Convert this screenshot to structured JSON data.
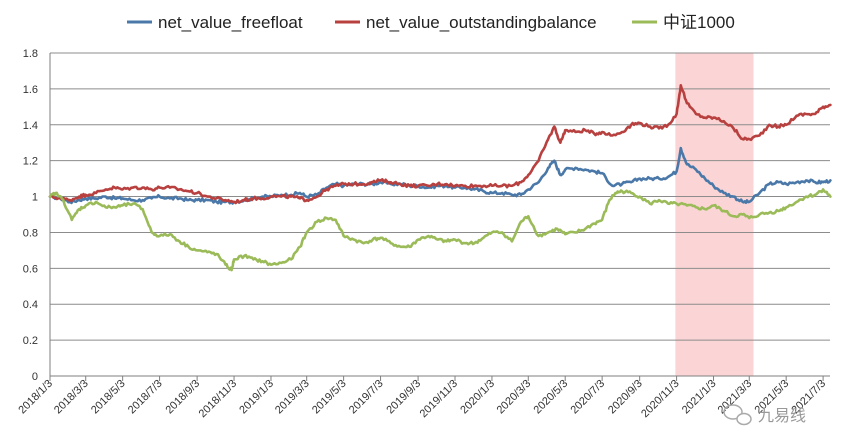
{
  "chart_data": {
    "type": "line",
    "xlabel": "",
    "ylabel": "",
    "ylim": [
      0,
      1.8
    ],
    "y_ticks": [
      "0",
      "0.2",
      "0.4",
      "0.6",
      "0.8",
      "1",
      "1.2",
      "1.4",
      "1.6",
      "1.8"
    ],
    "grid": "horizontal",
    "legend_position": "top",
    "x_tick_labels": [
      "2018/1/3",
      "2018/3/3",
      "2018/5/3",
      "2018/7/3",
      "2018/9/3",
      "2018/11/3",
      "2019/1/3",
      "2019/3/3",
      "2019/5/3",
      "2019/7/3",
      "2019/9/3",
      "2019/11/3",
      "2020/1/3",
      "2020/3/3",
      "2020/5/3",
      "2020/7/3",
      "2020/9/3",
      "2020/11/3",
      "2021/1/3",
      "2021/3/3",
      "2021/5/3",
      "2021/7/3"
    ],
    "highlight_region": {
      "start": "2020/11/1",
      "end": "2021/3/10",
      "color": "#fbd5d5"
    },
    "series": [
      {
        "name": "net_value_freefloat",
        "color": "#4a78a8",
        "points": [
          [
            "2018/1/3",
            1.0
          ],
          [
            "2018/1/20",
            0.99
          ],
          [
            "2018/2/5",
            0.97
          ],
          [
            "2018/2/20",
            0.98
          ],
          [
            "2018/3/3",
            0.99
          ],
          [
            "2018/3/20",
            0.99
          ],
          [
            "2018/4/5",
            1.0
          ],
          [
            "2018/4/20",
            0.99
          ],
          [
            "2018/5/3",
            0.99
          ],
          [
            "2018/5/20",
            0.98
          ],
          [
            "2018/6/5",
            0.98
          ],
          [
            "2018/6/20",
            0.99
          ],
          [
            "2018/7/3",
            1.0
          ],
          [
            "2018/7/20",
            0.99
          ],
          [
            "2018/8/5",
            0.99
          ],
          [
            "2018/8/20",
            0.98
          ],
          [
            "2018/9/3",
            0.98
          ],
          [
            "2018/9/20",
            0.98
          ],
          [
            "2018/10/5",
            0.97
          ],
          [
            "2018/10/20",
            0.97
          ],
          [
            "2018/11/3",
            0.97
          ],
          [
            "2018/11/20",
            0.98
          ],
          [
            "2018/12/5",
            0.99
          ],
          [
            "2018/12/20",
            1.0
          ],
          [
            "2019/1/3",
            1.0
          ],
          [
            "2019/1/20",
            1.01
          ],
          [
            "2019/2/5",
            1.01
          ],
          [
            "2019/2/20",
            1.02
          ],
          [
            "2019/3/3",
            1.0
          ],
          [
            "2019/3/20",
            1.01
          ],
          [
            "2019/4/5",
            1.05
          ],
          [
            "2019/4/20",
            1.07
          ],
          [
            "2019/5/3",
            1.06
          ],
          [
            "2019/5/20",
            1.07
          ],
          [
            "2019/6/5",
            1.07
          ],
          [
            "2019/6/20",
            1.07
          ],
          [
            "2019/7/3",
            1.08
          ],
          [
            "2019/7/20",
            1.07
          ],
          [
            "2019/8/5",
            1.07
          ],
          [
            "2019/8/20",
            1.06
          ],
          [
            "2019/9/3",
            1.06
          ],
          [
            "2019/9/20",
            1.05
          ],
          [
            "2019/10/5",
            1.06
          ],
          [
            "2019/10/20",
            1.06
          ],
          [
            "2019/11/3",
            1.05
          ],
          [
            "2019/11/20",
            1.05
          ],
          [
            "2019/12/5",
            1.04
          ],
          [
            "2019/12/20",
            1.03
          ],
          [
            "2020/1/3",
            1.02
          ],
          [
            "2020/1/20",
            1.02
          ],
          [
            "2020/2/5",
            1.01
          ],
          [
            "2020/2/20",
            1.01
          ],
          [
            "2020/3/3",
            1.04
          ],
          [
            "2020/3/20",
            1.08
          ],
          [
            "2020/4/5",
            1.16
          ],
          [
            "2020/4/15",
            1.2
          ],
          [
            "2020/4/25",
            1.12
          ],
          [
            "2020/5/3",
            1.15
          ],
          [
            "2020/5/20",
            1.16
          ],
          [
            "2020/6/5",
            1.15
          ],
          [
            "2020/6/20",
            1.14
          ],
          [
            "2020/7/3",
            1.13
          ],
          [
            "2020/7/20",
            1.06
          ],
          [
            "2020/8/5",
            1.07
          ],
          [
            "2020/8/20",
            1.08
          ],
          [
            "2020/9/3",
            1.1
          ],
          [
            "2020/9/20",
            1.1
          ],
          [
            "2020/10/5",
            1.1
          ],
          [
            "2020/10/20",
            1.11
          ],
          [
            "2020/11/3",
            1.14
          ],
          [
            "2020/11/10",
            1.27
          ],
          [
            "2020/11/20",
            1.18
          ],
          [
            "2020/12/5",
            1.15
          ],
          [
            "2020/12/20",
            1.1
          ],
          [
            "2021/1/3",
            1.06
          ],
          [
            "2021/1/20",
            1.02
          ],
          [
            "2021/2/5",
            1.0
          ],
          [
            "2021/2/20",
            0.97
          ],
          [
            "2021/3/3",
            0.97
          ],
          [
            "2021/3/20",
            1.02
          ],
          [
            "2021/4/5",
            1.07
          ],
          [
            "2021/4/20",
            1.08
          ],
          [
            "2021/5/3",
            1.07
          ],
          [
            "2021/5/20",
            1.08
          ],
          [
            "2021/6/5",
            1.09
          ],
          [
            "2021/6/20",
            1.08
          ],
          [
            "2021/7/3",
            1.08
          ],
          [
            "2021/7/15",
            1.09
          ]
        ]
      },
      {
        "name": "net_value_outstandingbalance",
        "color": "#b8403f",
        "points": [
          [
            "2018/1/3",
            1.0
          ],
          [
            "2018/1/20",
            0.99
          ],
          [
            "2018/2/5",
            0.98
          ],
          [
            "2018/2/20",
            1.0
          ],
          [
            "2018/3/3",
            1.01
          ],
          [
            "2018/3/20",
            1.02
          ],
          [
            "2018/4/5",
            1.04
          ],
          [
            "2018/4/20",
            1.05
          ],
          [
            "2018/5/3",
            1.04
          ],
          [
            "2018/5/20",
            1.05
          ],
          [
            "2018/6/5",
            1.05
          ],
          [
            "2018/6/20",
            1.04
          ],
          [
            "2018/7/3",
            1.05
          ],
          [
            "2018/7/20",
            1.05
          ],
          [
            "2018/8/5",
            1.04
          ],
          [
            "2018/8/20",
            1.03
          ],
          [
            "2018/9/3",
            1.02
          ],
          [
            "2018/9/20",
            1.0
          ],
          [
            "2018/10/5",
            0.99
          ],
          [
            "2018/10/20",
            0.98
          ],
          [
            "2018/11/3",
            0.97
          ],
          [
            "2018/11/20",
            0.98
          ],
          [
            "2018/12/5",
            0.99
          ],
          [
            "2018/12/20",
            0.99
          ],
          [
            "2019/1/3",
            1.0
          ],
          [
            "2019/1/20",
            1.0
          ],
          [
            "2019/2/5",
            1.0
          ],
          [
            "2019/2/20",
            0.99
          ],
          [
            "2019/3/3",
            0.98
          ],
          [
            "2019/3/20",
            1.0
          ],
          [
            "2019/4/5",
            1.04
          ],
          [
            "2019/4/20",
            1.06
          ],
          [
            "2019/5/3",
            1.07
          ],
          [
            "2019/5/20",
            1.07
          ],
          [
            "2019/6/5",
            1.07
          ],
          [
            "2019/6/20",
            1.08
          ],
          [
            "2019/7/3",
            1.09
          ],
          [
            "2019/7/20",
            1.08
          ],
          [
            "2019/8/5",
            1.07
          ],
          [
            "2019/8/20",
            1.06
          ],
          [
            "2019/9/3",
            1.06
          ],
          [
            "2019/9/20",
            1.06
          ],
          [
            "2019/10/5",
            1.07
          ],
          [
            "2019/10/20",
            1.07
          ],
          [
            "2019/11/3",
            1.06
          ],
          [
            "2019/11/20",
            1.06
          ],
          [
            "2019/12/5",
            1.06
          ],
          [
            "2019/12/20",
            1.06
          ],
          [
            "2020/1/3",
            1.06
          ],
          [
            "2020/1/20",
            1.06
          ],
          [
            "2020/2/5",
            1.06
          ],
          [
            "2020/2/20",
            1.08
          ],
          [
            "2020/3/3",
            1.12
          ],
          [
            "2020/3/20",
            1.2
          ],
          [
            "2020/4/5",
            1.32
          ],
          [
            "2020/4/15",
            1.39
          ],
          [
            "2020/4/25",
            1.3
          ],
          [
            "2020/5/3",
            1.37
          ],
          [
            "2020/5/20",
            1.36
          ],
          [
            "2020/6/5",
            1.37
          ],
          [
            "2020/6/20",
            1.35
          ],
          [
            "2020/7/3",
            1.36
          ],
          [
            "2020/7/20",
            1.34
          ],
          [
            "2020/8/5",
            1.36
          ],
          [
            "2020/8/20",
            1.4
          ],
          [
            "2020/9/3",
            1.41
          ],
          [
            "2020/9/20",
            1.39
          ],
          [
            "2020/10/5",
            1.38
          ],
          [
            "2020/10/20",
            1.4
          ],
          [
            "2020/11/3",
            1.46
          ],
          [
            "2020/11/10",
            1.62
          ],
          [
            "2020/11/20",
            1.52
          ],
          [
            "2020/12/5",
            1.46
          ],
          [
            "2020/12/20",
            1.44
          ],
          [
            "2021/1/3",
            1.44
          ],
          [
            "2021/1/20",
            1.42
          ],
          [
            "2021/2/5",
            1.38
          ],
          [
            "2021/2/20",
            1.32
          ],
          [
            "2021/3/3",
            1.32
          ],
          [
            "2021/3/20",
            1.34
          ],
          [
            "2021/4/5",
            1.4
          ],
          [
            "2021/4/20",
            1.39
          ],
          [
            "2021/5/3",
            1.4
          ],
          [
            "2021/5/20",
            1.45
          ],
          [
            "2021/6/5",
            1.46
          ],
          [
            "2021/6/20",
            1.46
          ],
          [
            "2021/7/3",
            1.5
          ],
          [
            "2021/7/15",
            1.51
          ]
        ]
      },
      {
        "name": "中证1000",
        "color": "#9bbb59",
        "points": [
          [
            "2018/1/3",
            1.0
          ],
          [
            "2018/1/12",
            1.02
          ],
          [
            "2018/1/25",
            0.98
          ],
          [
            "2018/2/8",
            0.87
          ],
          [
            "2018/2/20",
            0.93
          ],
          [
            "2018/3/3",
            0.95
          ],
          [
            "2018/3/20",
            0.97
          ],
          [
            "2018/4/5",
            0.94
          ],
          [
            "2018/4/20",
            0.94
          ],
          [
            "2018/5/3",
            0.95
          ],
          [
            "2018/5/20",
            0.96
          ],
          [
            "2018/6/5",
            0.93
          ],
          [
            "2018/6/20",
            0.8
          ],
          [
            "2018/7/3",
            0.78
          ],
          [
            "2018/7/20",
            0.79
          ],
          [
            "2018/8/5",
            0.75
          ],
          [
            "2018/8/20",
            0.72
          ],
          [
            "2018/9/3",
            0.7
          ],
          [
            "2018/9/20",
            0.69
          ],
          [
            "2018/10/5",
            0.68
          ],
          [
            "2018/10/20",
            0.62
          ],
          [
            "2018/10/30",
            0.59
          ],
          [
            "2018/11/3",
            0.65
          ],
          [
            "2018/11/20",
            0.67
          ],
          [
            "2018/12/5",
            0.65
          ],
          [
            "2018/12/20",
            0.64
          ],
          [
            "2019/1/3",
            0.62
          ],
          [
            "2019/1/20",
            0.63
          ],
          [
            "2019/2/5",
            0.65
          ],
          [
            "2019/2/20",
            0.72
          ],
          [
            "2019/3/3",
            0.8
          ],
          [
            "2019/3/20",
            0.86
          ],
          [
            "2019/4/5",
            0.88
          ],
          [
            "2019/4/20",
            0.87
          ],
          [
            "2019/5/3",
            0.78
          ],
          [
            "2019/5/20",
            0.76
          ],
          [
            "2019/6/5",
            0.74
          ],
          [
            "2019/6/20",
            0.76
          ],
          [
            "2019/7/3",
            0.77
          ],
          [
            "2019/7/20",
            0.74
          ],
          [
            "2019/8/5",
            0.72
          ],
          [
            "2019/8/20",
            0.72
          ],
          [
            "2019/9/3",
            0.76
          ],
          [
            "2019/9/20",
            0.78
          ],
          [
            "2019/10/5",
            0.76
          ],
          [
            "2019/10/20",
            0.75
          ],
          [
            "2019/11/3",
            0.76
          ],
          [
            "2019/11/20",
            0.74
          ],
          [
            "2019/12/5",
            0.74
          ],
          [
            "2019/12/20",
            0.77
          ],
          [
            "2020/1/3",
            0.8
          ],
          [
            "2020/1/20",
            0.8
          ],
          [
            "2020/2/5",
            0.75
          ],
          [
            "2020/2/20",
            0.86
          ],
          [
            "2020/3/3",
            0.89
          ],
          [
            "2020/3/20",
            0.78
          ],
          [
            "2020/4/5",
            0.8
          ],
          [
            "2020/4/20",
            0.82
          ],
          [
            "2020/5/3",
            0.79
          ],
          [
            "2020/5/20",
            0.8
          ],
          [
            "2020/6/5",
            0.82
          ],
          [
            "2020/6/20",
            0.85
          ],
          [
            "2020/7/3",
            0.87
          ],
          [
            "2020/7/15",
            0.98
          ],
          [
            "2020/7/25",
            1.02
          ],
          [
            "2020/8/5",
            1.03
          ],
          [
            "2020/8/20",
            1.02
          ],
          [
            "2020/9/3",
            1.0
          ],
          [
            "2020/9/20",
            0.96
          ],
          [
            "2020/10/5",
            0.98
          ],
          [
            "2020/10/20",
            0.96
          ],
          [
            "2020/11/3",
            0.96
          ],
          [
            "2020/11/20",
            0.95
          ],
          [
            "2020/12/5",
            0.94
          ],
          [
            "2020/12/20",
            0.93
          ],
          [
            "2021/1/3",
            0.95
          ],
          [
            "2021/1/20",
            0.92
          ],
          [
            "2021/2/5",
            0.89
          ],
          [
            "2021/2/20",
            0.9
          ],
          [
            "2021/3/3",
            0.88
          ],
          [
            "2021/3/20",
            0.9
          ],
          [
            "2021/4/5",
            0.91
          ],
          [
            "2021/4/20",
            0.92
          ],
          [
            "2021/5/3",
            0.94
          ],
          [
            "2021/5/20",
            0.97
          ],
          [
            "2021/6/5",
            1.0
          ],
          [
            "2021/6/20",
            1.01
          ],
          [
            "2021/7/3",
            1.04
          ],
          [
            "2021/7/15",
            1.0
          ]
        ]
      }
    ]
  },
  "legend": [
    {
      "label": "net_value_freefloat",
      "color": "#4a78a8"
    },
    {
      "label": "net_value_outstandingbalance",
      "color": "#b8403f"
    },
    {
      "label": "中证1000",
      "color": "#9bbb59"
    }
  ],
  "watermark": {
    "text": "九易线",
    "icon": "wechat-icon"
  }
}
